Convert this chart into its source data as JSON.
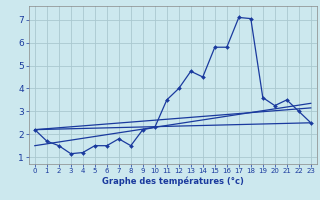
{
  "xlabel": "Graphe des températures (°c)",
  "bg_color": "#cce8ee",
  "line_color": "#1a3a9e",
  "grid_color": "#aac8d0",
  "xlim": [
    -0.5,
    23.5
  ],
  "ylim": [
    0.7,
    7.6
  ],
  "yticks": [
    1,
    2,
    3,
    4,
    5,
    6,
    7
  ],
  "xticks": [
    0,
    1,
    2,
    3,
    4,
    5,
    6,
    7,
    8,
    9,
    10,
    11,
    12,
    13,
    14,
    15,
    16,
    17,
    18,
    19,
    20,
    21,
    22,
    23
  ],
  "main_x": [
    0,
    1,
    2,
    3,
    4,
    5,
    6,
    7,
    8,
    9,
    10,
    11,
    12,
    13,
    14,
    15,
    16,
    17,
    18,
    19,
    20,
    21,
    22,
    23
  ],
  "main_y": [
    2.2,
    1.7,
    1.5,
    1.15,
    1.2,
    1.5,
    1.5,
    1.8,
    1.5,
    2.2,
    2.3,
    3.5,
    4.0,
    4.75,
    4.5,
    5.8,
    5.8,
    7.1,
    7.05,
    3.6,
    3.25,
    3.5,
    3.0,
    2.5
  ],
  "line1_x": [
    0,
    23
  ],
  "line1_y": [
    2.2,
    2.5
  ],
  "line2_x": [
    0,
    23
  ],
  "line2_y": [
    2.2,
    3.15
  ],
  "line3_x": [
    0,
    23
  ],
  "line3_y": [
    1.5,
    3.35
  ],
  "xlabel_fontsize": 6.0,
  "ytick_fontsize": 6.5,
  "xtick_fontsize": 5.0
}
